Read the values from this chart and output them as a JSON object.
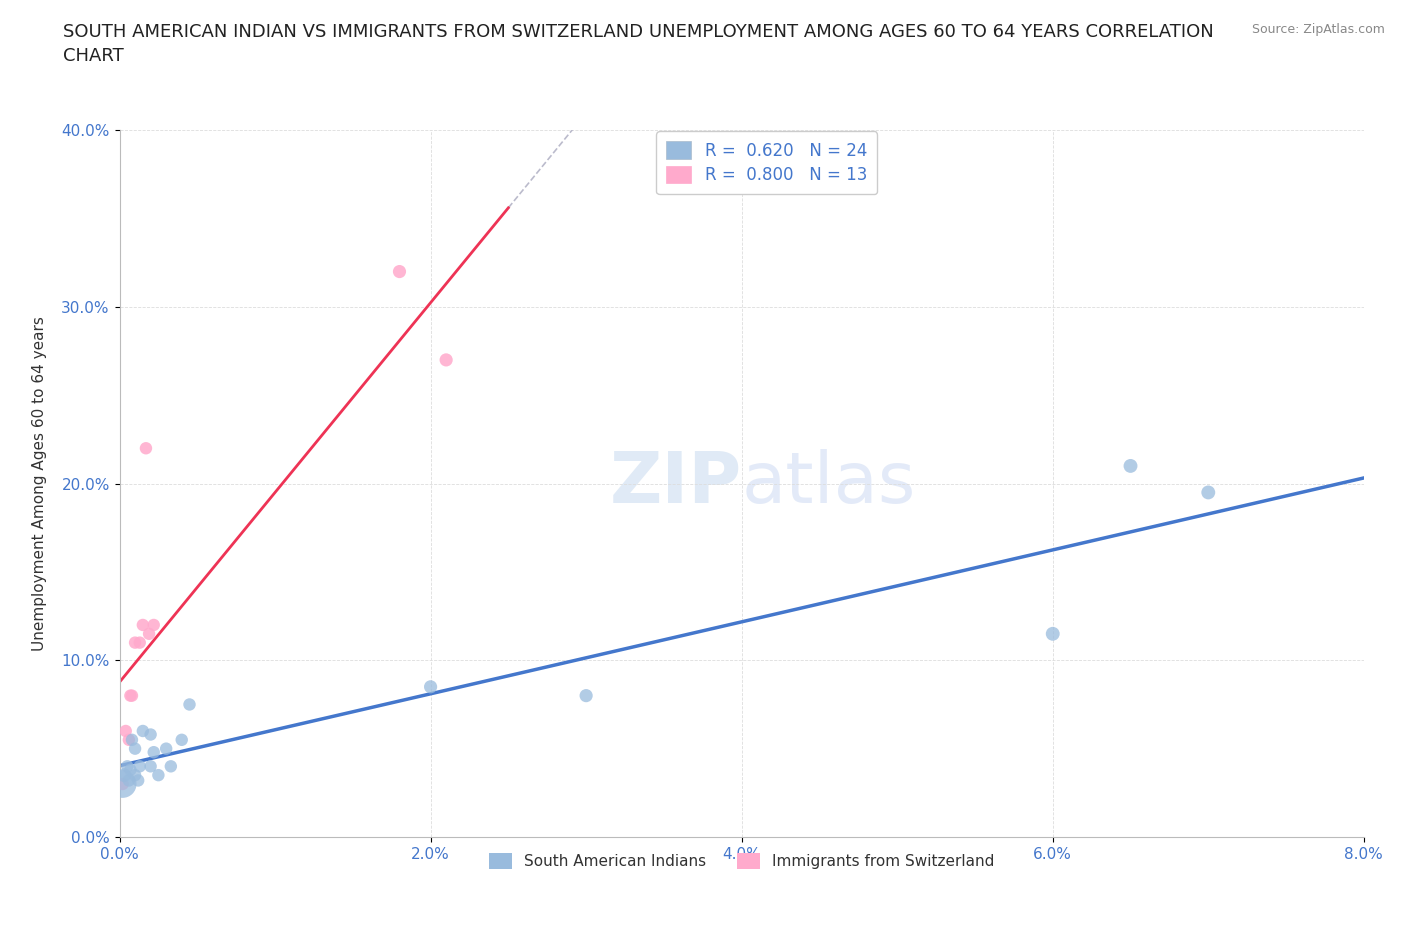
{
  "title": "SOUTH AMERICAN INDIAN VS IMMIGRANTS FROM SWITZERLAND UNEMPLOYMENT AMONG AGES 60 TO 64 YEARS CORRELATION\nCHART",
  "source": "Source: ZipAtlas.com",
  "ylabel": "Unemployment Among Ages 60 to 64 years",
  "watermark": "ZIPatlas",
  "legend_r1": "0.620",
  "legend_n1": "24",
  "legend_r2": "0.800",
  "legend_n2": "13",
  "legend_label1": "South American Indians",
  "legend_label2": "Immigrants from Switzerland",
  "blue_color": "#99BBDD",
  "pink_color": "#FFAACC",
  "blue_line_color": "#4477CC",
  "pink_line_color": "#EE3355",
  "dash_line_color": "#BBBBCC",
  "xlim": [
    0.0,
    0.08
  ],
  "ylim": [
    0.0,
    0.4
  ],
  "xticks": [
    0.0,
    0.02,
    0.04,
    0.06,
    0.08
  ],
  "yticks": [
    0.0,
    0.1,
    0.2,
    0.3,
    0.4
  ],
  "blue_x": [
    0.0002,
    0.0003,
    0.0005,
    0.0006,
    0.0007,
    0.0008,
    0.001,
    0.001,
    0.0012,
    0.0013,
    0.0015,
    0.002,
    0.002,
    0.0022,
    0.0025,
    0.003,
    0.0033,
    0.004,
    0.0045,
    0.02,
    0.03,
    0.06,
    0.065,
    0.07
  ],
  "blue_y": [
    0.03,
    0.035,
    0.04,
    0.032,
    0.038,
    0.055,
    0.035,
    0.05,
    0.032,
    0.04,
    0.06,
    0.04,
    0.058,
    0.048,
    0.035,
    0.05,
    0.04,
    0.055,
    0.075,
    0.085,
    0.08,
    0.115,
    0.21,
    0.195
  ],
  "blue_sizes": [
    400,
    100,
    80,
    80,
    80,
    80,
    80,
    80,
    80,
    80,
    80,
    80,
    80,
    80,
    80,
    80,
    80,
    80,
    80,
    90,
    90,
    100,
    100,
    100
  ],
  "pink_x": [
    0.0002,
    0.0004,
    0.0006,
    0.0007,
    0.0008,
    0.001,
    0.0013,
    0.0015,
    0.0017,
    0.0019,
    0.0022,
    0.018,
    0.021
  ],
  "pink_y": [
    0.03,
    0.06,
    0.055,
    0.08,
    0.08,
    0.11,
    0.11,
    0.12,
    0.22,
    0.115,
    0.12,
    0.32,
    0.27
  ],
  "pink_sizes": [
    80,
    80,
    80,
    80,
    80,
    80,
    80,
    80,
    80,
    80,
    80,
    90,
    90
  ],
  "background_color": "#FFFFFF",
  "grid_color": "#DDDDDD",
  "tick_color": "#4477CC",
  "label_color": "#333333"
}
